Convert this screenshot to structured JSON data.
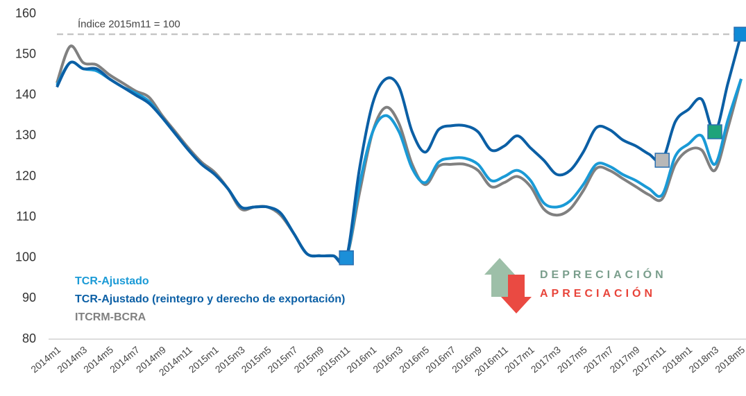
{
  "chart_data": {
    "type": "line",
    "categories": [
      "2014m1",
      null,
      "2014m3",
      null,
      "2014m5",
      null,
      "2014m7",
      null,
      "2014m9",
      null,
      "2014m11",
      null,
      "2015m1",
      null,
      "2015m3",
      null,
      "2015m5",
      null,
      "2015m7",
      null,
      "2015m9",
      null,
      "2015m11",
      null,
      "2016m1",
      null,
      "2016m3",
      null,
      "2016m5",
      null,
      "2016m7",
      null,
      "2016m9",
      null,
      "2016m11",
      null,
      "2017m1",
      null,
      "2017m3",
      null,
      "2017m5",
      null,
      "2017m7",
      null,
      "2017m9",
      null,
      "2017m11",
      null,
      "2018m1",
      null,
      "2018m3",
      null,
      "2018m5"
    ],
    "series": [
      {
        "name": "TCR-Ajustado",
        "color": "#1a9ad6",
        "values": [
          142.5,
          148,
          146.5,
          146,
          144,
          142,
          140.5,
          138.5,
          134.5,
          130.5,
          126.5,
          123,
          120.5,
          117,
          112.5,
          112.5,
          112.5,
          111,
          106,
          101,
          100.5,
          100.5,
          100,
          118,
          131,
          135,
          131,
          122,
          118.5,
          123.5,
          124.5,
          124.5,
          123,
          119,
          120,
          121.5,
          119,
          113.5,
          112.5,
          114,
          118,
          123,
          122.5,
          120.5,
          119,
          117,
          115.5,
          125,
          128,
          130,
          123,
          134,
          144
        ]
      },
      {
        "name": "TCR-Ajustado (reintegro y derecho de exportación)",
        "color": "#0b5fa5",
        "values": [
          142,
          148,
          146.5,
          146.5,
          144,
          142,
          140,
          138,
          134.5,
          130.5,
          126.5,
          123,
          120.5,
          117,
          112.5,
          112.5,
          112.5,
          111,
          106,
          101,
          100.5,
          100.5,
          100,
          122,
          138,
          144,
          142,
          131,
          126,
          131.5,
          132.5,
          132.5,
          131,
          126.5,
          127.5,
          130,
          127,
          124,
          120.5,
          121.5,
          126,
          132,
          131.5,
          129,
          127.5,
          125.5,
          124,
          133.5,
          136.5,
          139,
          131,
          143,
          155
        ]
      },
      {
        "name": "ITCRM-BCRA",
        "color": "#808080",
        "values": [
          143,
          152,
          148,
          147.5,
          145,
          143,
          141,
          139.5,
          135,
          131,
          127,
          123.5,
          121,
          117,
          112,
          112.5,
          112.5,
          110.5,
          106,
          101,
          100.5,
          100.5,
          100,
          116,
          131,
          137,
          133,
          123,
          118,
          122.5,
          123,
          123,
          121.5,
          117.5,
          118.5,
          120,
          117.5,
          112,
          110.5,
          112,
          116.5,
          122,
          121.5,
          119.5,
          117.5,
          115.5,
          114.5,
          123,
          126.5,
          126.5,
          121.5,
          132,
          144
        ]
      }
    ],
    "markers": [
      {
        "series": 0,
        "index": 22,
        "color": "#1b8fd8"
      },
      {
        "series": 1,
        "index": 46,
        "color": "#b8b8b8"
      },
      {
        "series": 1,
        "index": 50,
        "color": "#1fa37a"
      },
      {
        "series": 1,
        "index": 52,
        "color": "#0f8ad6"
      }
    ],
    "reference_line": {
      "value": 155,
      "label": "Índice 2015m11 = 100"
    },
    "annotations": [
      "DEPRECIACIÓN",
      "APRECIACIÓN"
    ],
    "ylim": [
      80,
      160
    ],
    "yticks": [
      80,
      90,
      100,
      110,
      120,
      130,
      140,
      150,
      160
    ]
  }
}
